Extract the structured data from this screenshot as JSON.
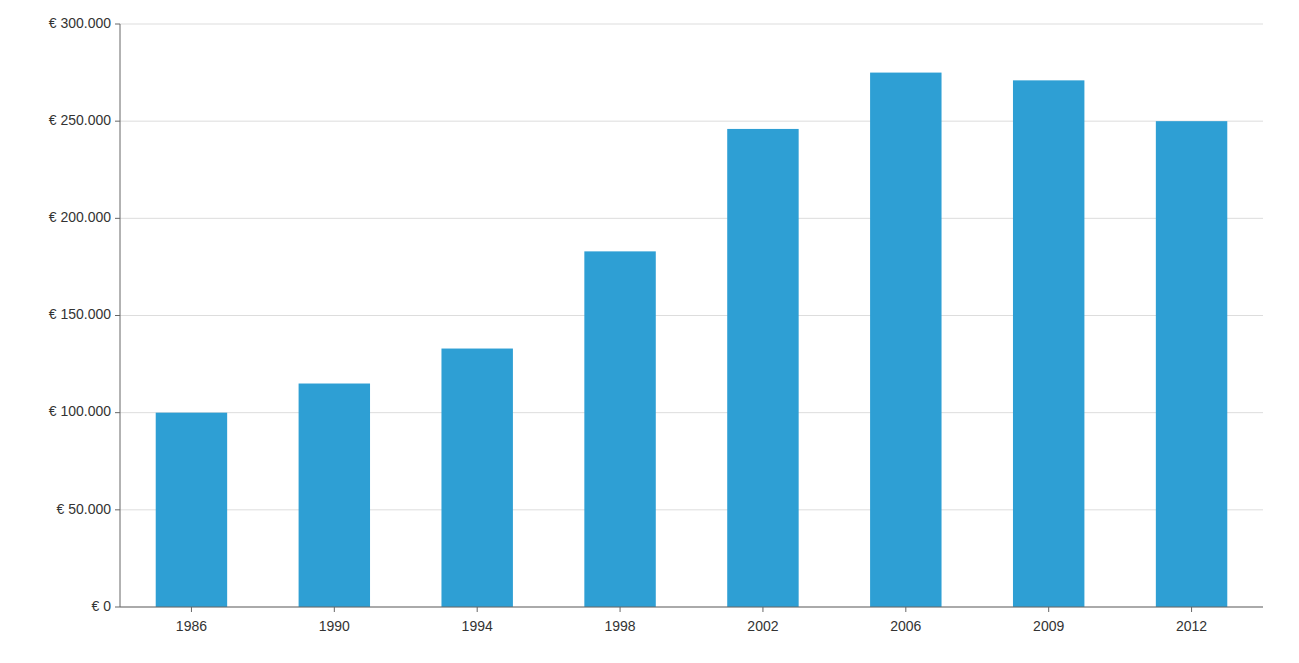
{
  "chart_data": {
    "type": "bar",
    "categories": [
      "1986",
      "1990",
      "1994",
      "1998",
      "2002",
      "2006",
      "2009",
      "2012"
    ],
    "values": [
      100000,
      115000,
      133000,
      183000,
      246000,
      275000,
      271000,
      250000
    ],
    "color": "#2E9FD4",
    "ylim": [
      0,
      300000
    ],
    "yticks": [
      {
        "value": 0,
        "label": "€ 0"
      },
      {
        "value": 50000,
        "label": "€ 50.000"
      },
      {
        "value": 100000,
        "label": "€ 100.000"
      },
      {
        "value": 150000,
        "label": "€ 150.000"
      },
      {
        "value": 200000,
        "label": "€ 200.000"
      },
      {
        "value": 250000,
        "label": "€ 250.000"
      },
      {
        "value": 300000,
        "label": "€ 300.000"
      }
    ],
    "grid": true
  }
}
